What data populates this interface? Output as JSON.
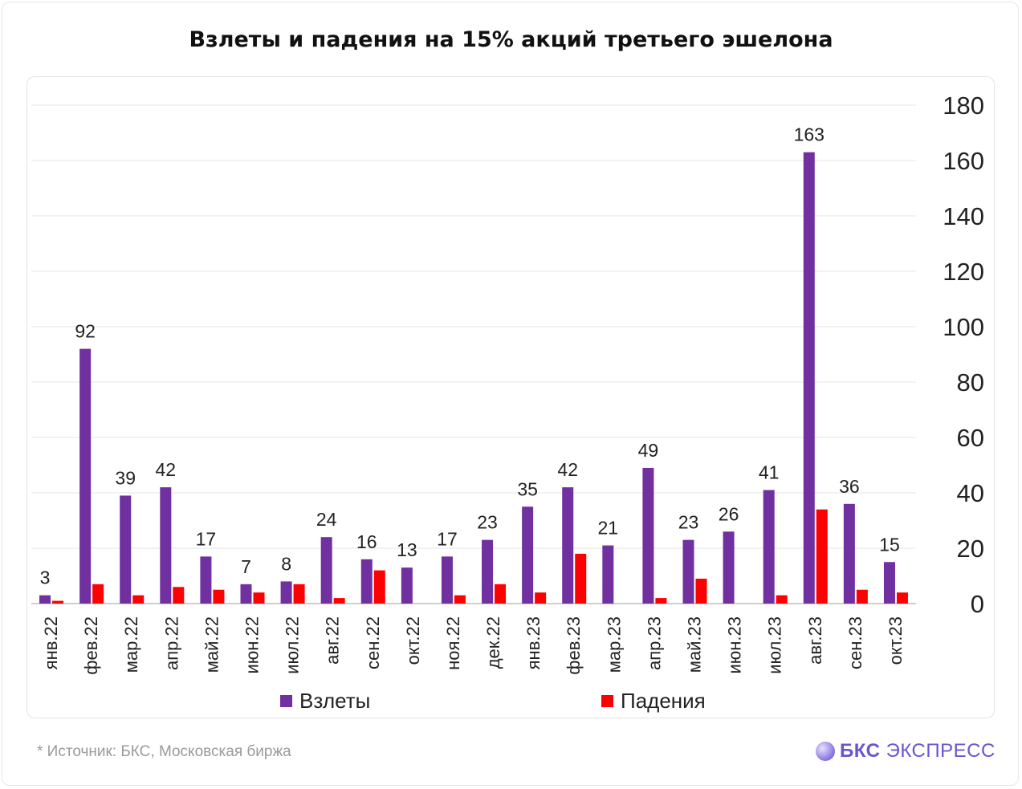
{
  "title": "Взлеты и падения на 15% акций третьего эшелона",
  "footer": {
    "source_note": "*  Источник: БКС, Московская биржа",
    "brand_bold": "БКС",
    "brand_light": "ЭКСПРЕСС"
  },
  "colors": {
    "rises": "#7030a0",
    "falls": "#ff0000",
    "grid": "#e6e6e6",
    "text": "#222222"
  },
  "chart_data": {
    "type": "bar",
    "title": "Взлеты и падения на 15% акций третьего эшелона",
    "categories": [
      "янв.22",
      "фев.22",
      "мар.22",
      "апр.22",
      "май.22",
      "июн.22",
      "июл.22",
      "авг.22",
      "сен.22",
      "окт.22",
      "ноя.22",
      "дек.22",
      "янв.23",
      "фев.23",
      "мар.23",
      "апр.23",
      "май.23",
      "июн.23",
      "июл.23",
      "авг.23",
      "сен.23",
      "окт.23"
    ],
    "series": [
      {
        "name": "Взлеты",
        "values": [
          3,
          92,
          39,
          42,
          17,
          7,
          8,
          24,
          16,
          13,
          17,
          23,
          35,
          42,
          21,
          49,
          23,
          26,
          41,
          163,
          36,
          15
        ]
      },
      {
        "name": "Падения",
        "values": [
          1,
          7,
          3,
          6,
          5,
          4,
          7,
          2,
          12,
          0,
          3,
          7,
          4,
          18,
          0,
          2,
          9,
          0,
          3,
          34,
          5,
          4
        ]
      }
    ],
    "y_ticks": [
      "0",
      "20",
      "40",
      "60",
      "80",
      "100",
      "120",
      "140",
      "160",
      "180"
    ],
    "ylim": [
      0,
      180
    ],
    "y_axis_side": "right",
    "grid": true,
    "legend": "bottom",
    "data_labels": "rises-only"
  }
}
